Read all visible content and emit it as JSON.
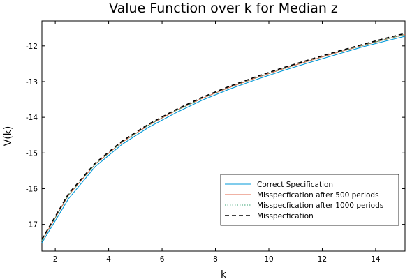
{
  "chart_data": {
    "type": "line",
    "title": "Value Function over k for Median z",
    "xlabel": "k",
    "ylabel": "V(k)",
    "xlim": [
      1.5,
      15.1
    ],
    "ylim": [
      -17.75,
      -11.3
    ],
    "xticks": [
      2,
      4,
      6,
      8,
      10,
      12,
      14
    ],
    "yticks": [
      -17,
      -16,
      -15,
      -14,
      -13,
      -12
    ],
    "grid": false,
    "legend_position": "bottom-right",
    "x": [
      1.5,
      2.5,
      3.5,
      4.5,
      5.5,
      6.5,
      7.5,
      8.5,
      9.5,
      10.5,
      11.5,
      12.5,
      13.5,
      14.5,
      15.1
    ],
    "series": [
      {
        "name": "Correct Specification",
        "color": "#0099d8",
        "dash": "solid",
        "values": [
          -17.52,
          -16.28,
          -15.38,
          -14.76,
          -14.28,
          -13.88,
          -13.52,
          -13.22,
          -12.95,
          -12.7,
          -12.47,
          -12.25,
          -12.03,
          -11.84,
          -11.73
        ]
      },
      {
        "name": "Misspecfication after 500 periods",
        "color": "#e06648",
        "dash": "solid",
        "values": [
          -17.45,
          -16.18,
          -15.31,
          -14.7,
          -14.22,
          -13.82,
          -13.47,
          -13.17,
          -12.9,
          -12.65,
          -12.42,
          -12.2,
          -11.99,
          -11.79,
          -11.68
        ]
      },
      {
        "name": "Misspecfication after 1000 periods",
        "color": "#3aa373",
        "dash": "dotted",
        "values": [
          -17.45,
          -16.18,
          -15.31,
          -14.7,
          -14.22,
          -13.82,
          -13.47,
          -13.17,
          -12.9,
          -12.65,
          -12.42,
          -12.2,
          -11.99,
          -11.79,
          -11.68
        ]
      },
      {
        "name": "Misspecfication",
        "color": "#000000",
        "dash": "dashed",
        "values": [
          -17.42,
          -16.14,
          -15.28,
          -14.67,
          -14.19,
          -13.79,
          -13.44,
          -13.14,
          -12.87,
          -12.62,
          -12.39,
          -12.17,
          -11.96,
          -11.76,
          -11.65
        ]
      }
    ]
  }
}
